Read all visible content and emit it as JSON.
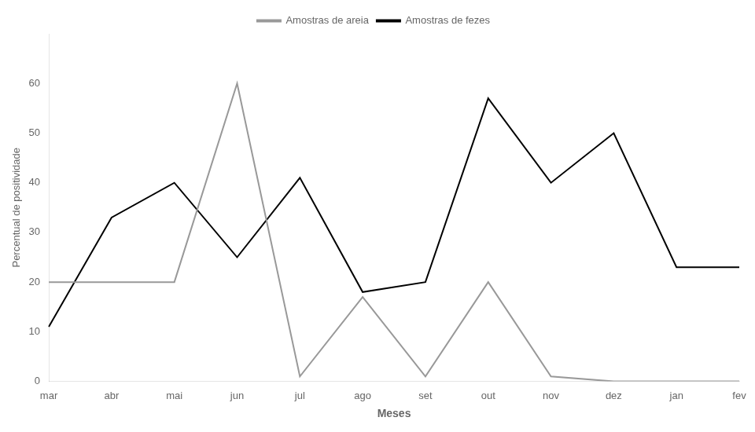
{
  "chart_data": {
    "type": "line",
    "categories": [
      "mar",
      "abr",
      "mai",
      "jun",
      "jul",
      "ago",
      "set",
      "out",
      "nov",
      "dez",
      "jan",
      "fev"
    ],
    "series": [
      {
        "name": "Amostras de areia",
        "color": "#999999",
        "values": [
          20,
          20,
          20,
          60,
          1,
          17,
          1,
          20,
          1,
          0,
          0,
          0
        ]
      },
      {
        "name": "Amostras de fezes",
        "color": "#000000",
        "values": [
          11,
          33,
          40,
          25,
          41,
          18,
          20,
          57,
          40,
          50,
          23,
          23
        ]
      }
    ],
    "xlabel": "Meses",
    "ylabel": "Percentual de positividade",
    "ylim": [
      0,
      70
    ],
    "yticks": [
      0,
      10,
      20,
      30,
      40,
      50,
      60
    ],
    "grid": false,
    "legend": "top"
  }
}
